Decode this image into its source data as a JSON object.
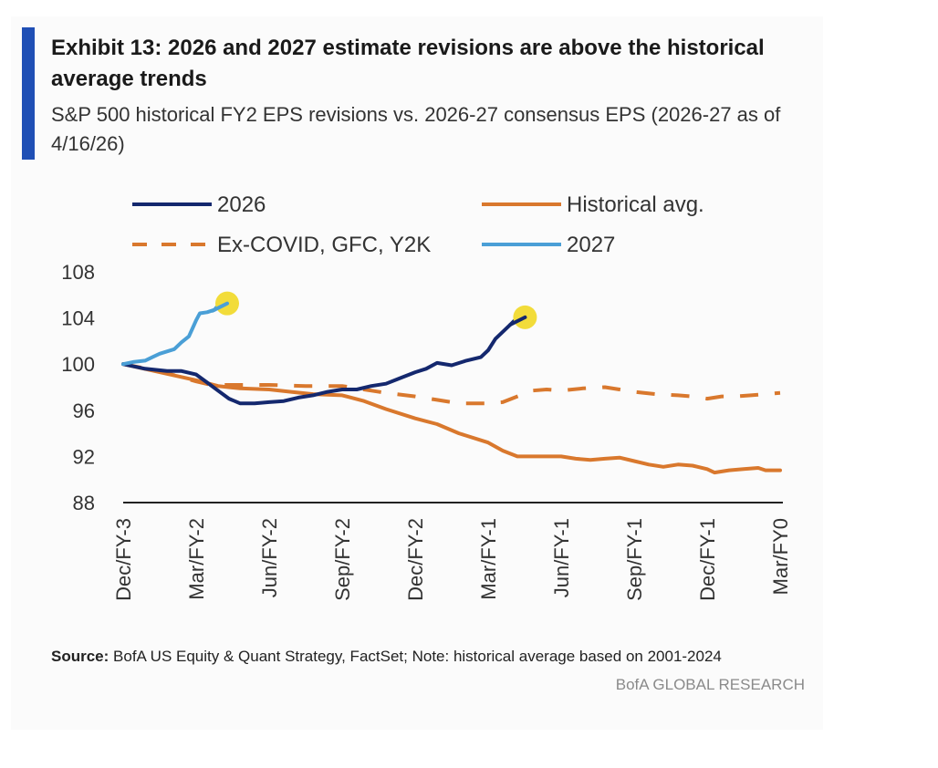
{
  "header": {
    "title": "Exhibit 13: 2026 and 2027 estimate revisions are above the historical average trends",
    "subtitle": "S&P 500 historical FY2 EPS revisions vs. 2026-27 consensus EPS (2026-27 as of 4/16/26)"
  },
  "footer": {
    "source_label": "Source:",
    "source_text": " BofA US Equity & Quant Strategy, FactSet; Note: historical average based on 2001-2024",
    "brand": "BofA GLOBAL RESEARCH"
  },
  "colors": {
    "accent_bar": "#1f4fb5",
    "navy": "#14286e",
    "orange": "#d9782d",
    "light_blue": "#4a9fd6",
    "highlight": "#f2dc3a"
  },
  "chart_data": {
    "type": "line",
    "x_categories": [
      "Dec/FY-3",
      "Mar/FY-2",
      "Jun/FY-2",
      "Sep/FY-2",
      "Dec/FY-2",
      "Mar/FY-1",
      "Jun/FY-1",
      "Sep/FY-1",
      "Dec/FY-1",
      "Mar/FY0"
    ],
    "x_range": [
      0,
      9
    ],
    "ylim": [
      88,
      108
    ],
    "yticks": [
      88,
      92,
      96,
      100,
      104,
      108
    ],
    "legend_position": "top",
    "series": [
      {
        "name": "2026",
        "color": "#14286e",
        "style": "solid",
        "points": [
          [
            0,
            100
          ],
          [
            0.3,
            99.6
          ],
          [
            0.6,
            99.4
          ],
          [
            0.8,
            99.4
          ],
          [
            1,
            99.1
          ],
          [
            1.15,
            98.4
          ],
          [
            1.3,
            97.7
          ],
          [
            1.45,
            97
          ],
          [
            1.6,
            96.6
          ],
          [
            1.8,
            96.6
          ],
          [
            2,
            96.7
          ],
          [
            2.2,
            96.8
          ],
          [
            2.4,
            97.1
          ],
          [
            2.6,
            97.3
          ],
          [
            2.8,
            97.6
          ],
          [
            3,
            97.8
          ],
          [
            3.2,
            97.8
          ],
          [
            3.4,
            98.1
          ],
          [
            3.6,
            98.3
          ],
          [
            3.8,
            98.8
          ],
          [
            4,
            99.3
          ],
          [
            4.15,
            99.6
          ],
          [
            4.3,
            100.1
          ],
          [
            4.5,
            99.9
          ],
          [
            4.7,
            100.3
          ],
          [
            4.9,
            100.6
          ],
          [
            5,
            101.2
          ],
          [
            5.1,
            102.2
          ],
          [
            5.2,
            102.8
          ],
          [
            5.3,
            103.4
          ],
          [
            5.38,
            103.9
          ]
        ],
        "endpoint_marker": true
      },
      {
        "name": "Historical avg.",
        "color": "#d9782d",
        "style": "solid",
        "points": [
          [
            0,
            100
          ],
          [
            0.5,
            99.3
          ],
          [
            1,
            98.6
          ],
          [
            1.3,
            98.1
          ],
          [
            1.6,
            97.9
          ],
          [
            2,
            97.8
          ],
          [
            2.3,
            97.6
          ],
          [
            2.6,
            97.4
          ],
          [
            3,
            97.3
          ],
          [
            3.3,
            96.8
          ],
          [
            3.6,
            96.1
          ],
          [
            4,
            95.3
          ],
          [
            4.3,
            94.8
          ],
          [
            4.6,
            94
          ],
          [
            5,
            93.2
          ],
          [
            5.2,
            92.5
          ],
          [
            5.4,
            92
          ],
          [
            5.7,
            92
          ],
          [
            6,
            92
          ],
          [
            6.2,
            91.8
          ],
          [
            6.4,
            91.7
          ],
          [
            6.6,
            91.8
          ],
          [
            6.8,
            91.9
          ],
          [
            7,
            91.6
          ],
          [
            7.2,
            91.3
          ],
          [
            7.4,
            91.1
          ],
          [
            7.6,
            91.3
          ],
          [
            7.8,
            91.2
          ],
          [
            8,
            90.9
          ],
          [
            8.1,
            90.6
          ],
          [
            8.3,
            90.8
          ],
          [
            8.5,
            90.9
          ],
          [
            8.7,
            91
          ],
          [
            8.8,
            90.8
          ],
          [
            9,
            90.8
          ]
        ]
      },
      {
        "name": "Ex-COVID, GFC, Y2K",
        "color": "#d9782d",
        "style": "dashed",
        "points": [
          [
            0,
            100
          ],
          [
            0.5,
            99.4
          ],
          [
            1,
            98.5
          ],
          [
            1.2,
            98.2
          ],
          [
            1.5,
            98.2
          ],
          [
            2,
            98.2
          ],
          [
            2.5,
            98.1
          ],
          [
            3,
            98.1
          ],
          [
            3.3,
            97.8
          ],
          [
            3.6,
            97.5
          ],
          [
            4,
            97.2
          ],
          [
            4.3,
            96.9
          ],
          [
            4.6,
            96.6
          ],
          [
            5,
            96.6
          ],
          [
            5.2,
            96.7
          ],
          [
            5.4,
            97.2
          ],
          [
            5.6,
            97.7
          ],
          [
            5.8,
            97.8
          ],
          [
            6,
            97.7
          ],
          [
            6.3,
            97.9
          ],
          [
            6.6,
            98
          ],
          [
            6.8,
            97.8
          ],
          [
            7,
            97.6
          ],
          [
            7.3,
            97.4
          ],
          [
            7.6,
            97.3
          ],
          [
            7.8,
            97.2
          ],
          [
            8,
            97
          ],
          [
            8.2,
            97.2
          ],
          [
            8.4,
            97.2
          ],
          [
            8.6,
            97.3
          ],
          [
            9,
            97.5
          ]
        ]
      },
      {
        "name": "2027",
        "color": "#4a9fd6",
        "style": "solid",
        "points": [
          [
            0,
            100
          ],
          [
            0.15,
            100.2
          ],
          [
            0.3,
            100.3
          ],
          [
            0.4,
            100.6
          ],
          [
            0.5,
            100.9
          ],
          [
            0.6,
            101.1
          ],
          [
            0.7,
            101.3
          ],
          [
            0.8,
            101.9
          ],
          [
            0.9,
            102.4
          ],
          [
            0.95,
            103.1
          ],
          [
            1,
            103.8
          ],
          [
            1.05,
            104.4
          ],
          [
            1.15,
            104.5
          ],
          [
            1.25,
            104.7
          ],
          [
            1.3,
            105.1
          ]
        ],
        "endpoint_marker": true
      }
    ]
  }
}
